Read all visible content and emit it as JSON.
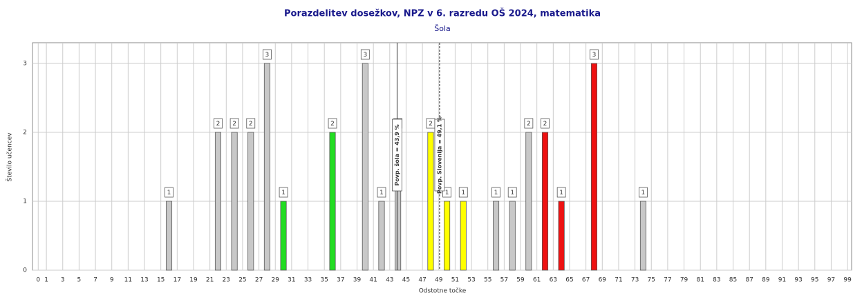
{
  "chart_data": {
    "type": "bar",
    "title": "Porazdelitev dosežkov, NPZ v 6. razredu OŠ 2024, matematika",
    "subtitle": "Šola",
    "x_label": "Odstotne točke",
    "y_label": "Število učencev",
    "x": [
      16,
      22,
      24,
      26,
      28,
      30,
      36,
      40,
      42,
      44,
      48,
      50,
      52,
      56,
      58,
      60,
      62,
      64,
      68,
      74
    ],
    "values": [
      1,
      2,
      2,
      2,
      3,
      1,
      2,
      3,
      1,
      2,
      2,
      1,
      1,
      1,
      1,
      2,
      2,
      1,
      3,
      1
    ],
    "colors": [
      "#c8c8c8",
      "#c8c8c8",
      "#c8c8c8",
      "#c8c8c8",
      "#c8c8c8",
      "#22dd22",
      "#22dd22",
      "#c8c8c8",
      "#c8c8c8",
      "#c8c8c8",
      "#ffff00",
      "#ffff00",
      "#ffff00",
      "#c8c8c8",
      "#c8c8c8",
      "#c8c8c8",
      "#ee1111",
      "#ee1111",
      "#ee1111",
      "#c8c8c8"
    ],
    "xlim": [
      -0.7,
      99.5
    ],
    "ylim": [
      0,
      3.3
    ],
    "yticks": [
      0,
      1,
      2,
      3
    ],
    "xticks": [
      0,
      1,
      3,
      5,
      7,
      9,
      11,
      13,
      15,
      17,
      19,
      21,
      23,
      25,
      27,
      29,
      31,
      33,
      35,
      37,
      39,
      41,
      43,
      45,
      47,
      49,
      51,
      53,
      55,
      57,
      59,
      61,
      63,
      65,
      67,
      69,
      71,
      73,
      75,
      77,
      79,
      81,
      83,
      85,
      87,
      89,
      91,
      93,
      95,
      97,
      99
    ],
    "grid": true,
    "annotations": [
      {
        "x": 43.9,
        "text": "Povp. šola = 43,9 %",
        "style": "solid"
      },
      {
        "x": 49.1,
        "text": "Povp. Slovenija = 49,1 %",
        "style": "dashed"
      }
    ]
  }
}
